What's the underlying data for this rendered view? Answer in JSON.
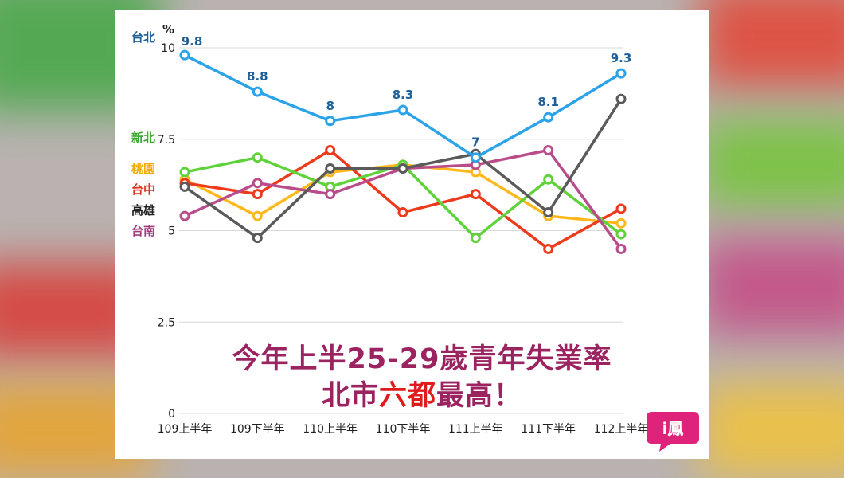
{
  "banner": {
    "line1": "今年上半25-29歲青年失業率",
    "line2_pre": "北市",
    "line2_hl": "六都",
    "line2_post": "最高！"
  },
  "logo": {
    "text": "i鳳"
  },
  "chart_data": {
    "type": "line",
    "ylabel": "%",
    "ylim": [
      0,
      10
    ],
    "yticks": [
      "0",
      "2.5",
      "5",
      "7.5",
      "10"
    ],
    "grid": true,
    "legend_placement": "left",
    "categories": [
      "109上半年",
      "109下半年",
      "110上半年",
      "110下半年",
      "111上半年",
      "111下半年",
      "112上半年"
    ],
    "series": [
      {
        "name": "台北",
        "color": "#2aa3e8",
        "label_color": "#1f5f98",
        "values": [
          9.8,
          8.8,
          8.0,
          8.3,
          7.0,
          8.1,
          9.3
        ],
        "data_labels": [
          "9.8",
          "8.8",
          "8",
          "8.3",
          "7",
          "8.1",
          "9.3"
        ]
      },
      {
        "name": "新北",
        "color": "#5fd23a",
        "label_color": "#3aa82a",
        "values": [
          6.6,
          7.0,
          6.2,
          6.8,
          4.8,
          6.4,
          4.9
        ]
      },
      {
        "name": "桃園",
        "color": "#ffb81c",
        "label_color": "#f2a900",
        "values": [
          6.4,
          5.4,
          6.6,
          6.8,
          6.6,
          5.4,
          5.2
        ]
      },
      {
        "name": "台中",
        "color": "#ee3a1c",
        "label_color": "#e0321c",
        "values": [
          6.3,
          6.0,
          7.2,
          5.5,
          6.0,
          4.5,
          5.6
        ]
      },
      {
        "name": "高雄",
        "color": "#5a5a5a",
        "label_color": "#222222",
        "values": [
          6.2,
          4.8,
          6.7,
          6.7,
          7.1,
          5.5,
          8.6
        ]
      },
      {
        "name": "台南",
        "color": "#b94d8b",
        "label_color": "#a03a7a",
        "values": [
          5.4,
          6.3,
          6.0,
          6.7,
          6.8,
          7.2,
          4.5
        ]
      }
    ]
  }
}
